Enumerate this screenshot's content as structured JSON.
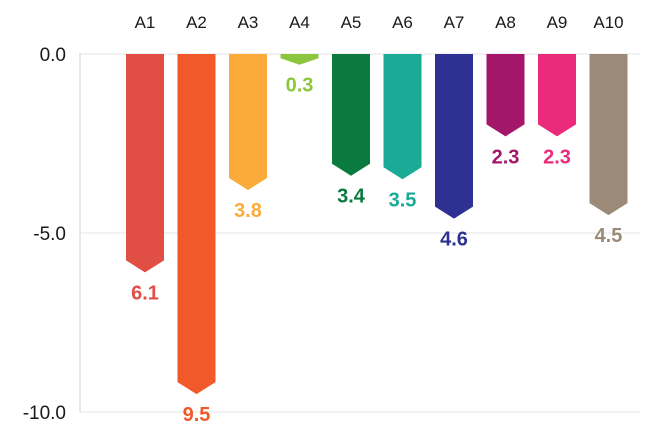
{
  "chart_data": {
    "type": "bar",
    "categories": [
      "A1",
      "A2",
      "A3",
      "A4",
      "A5",
      "A6",
      "A7",
      "A8",
      "A9",
      "A10"
    ],
    "values": [
      -6.1,
      -9.5,
      -3.8,
      -0.3,
      -3.4,
      -3.5,
      -4.6,
      -2.3,
      -2.3,
      -4.5
    ],
    "data_labels": [
      "6.1",
      "9.5",
      "3.8",
      "0.3",
      "3.4",
      "3.5",
      "4.6",
      "2.3",
      "2.3",
      "4.5"
    ],
    "colors": [
      "#e04e44",
      "#f1592a",
      "#fbab3a",
      "#8cc63f",
      "#0a7a3e",
      "#1aaa96",
      "#2e3192",
      "#a3166a",
      "#ec2a7b",
      "#9b8a78"
    ],
    "y_ticks": [
      "0.0",
      "-5.0",
      "-10.0"
    ],
    "y_tick_values": [
      0,
      -5,
      -10
    ],
    "ylim": [
      -10,
      0
    ],
    "grid": "horizontal",
    "title": "",
    "xlabel": "",
    "ylabel": ""
  }
}
